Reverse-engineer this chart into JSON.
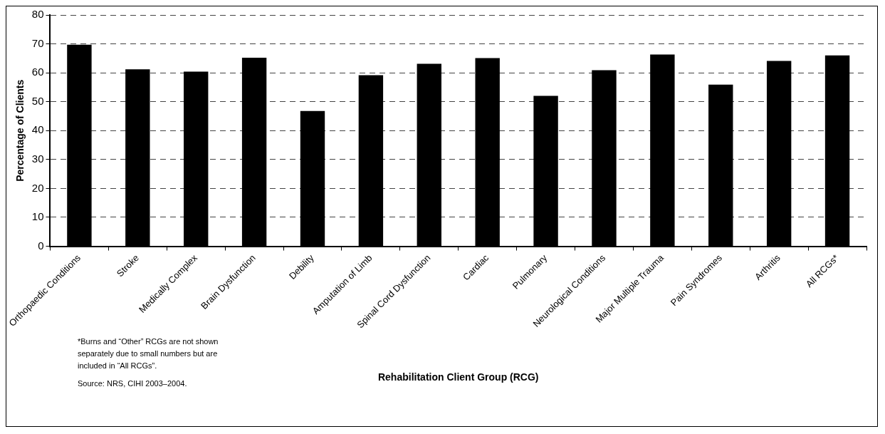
{
  "chart_data": {
    "type": "bar",
    "ylabel": "Percentage of Clients",
    "xlabel": "Rehabilitation Client Group (RCG)",
    "categories": [
      "Orthopaedic Conditions",
      "Stroke",
      "Medically Complex",
      "Brain Dysfunction",
      "Debility",
      "Amputation of Limb",
      "Spinal Cord Dysfunction",
      "Cardiac",
      "Pulmonary",
      "Neurological Conditions",
      "Major Multiple Trauma",
      "Pain Syndromes",
      "Arthritis",
      "All RCGs*"
    ],
    "values": [
      69.7,
      61.2,
      60.4,
      65.2,
      46.8,
      59.2,
      63.1,
      65.1,
      52.0,
      60.9,
      66.3,
      55.9,
      64.1,
      66.0
    ],
    "color": "#000000",
    "ylim": [
      0,
      80
    ],
    "yticks": [
      0,
      10,
      20,
      30,
      40,
      50,
      60,
      70,
      80
    ],
    "grid": "y",
    "legend": false,
    "annotations": [
      "*Burns and “Other” RCGs are not shown separately due to small numbers but are included in “All RCGs”.",
      "Source: NRS, CIHI 2003–2004."
    ]
  }
}
